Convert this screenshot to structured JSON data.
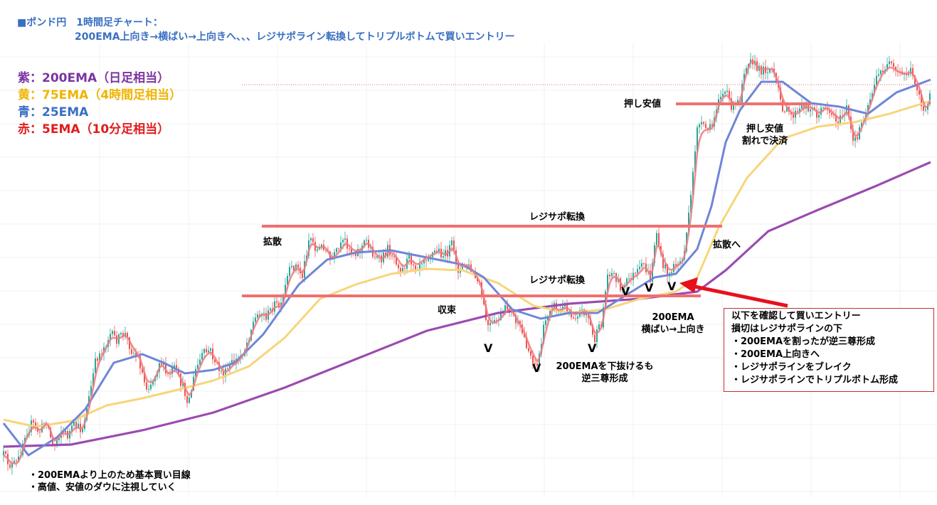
{
  "title": {
    "line1": "■ポンド円　1時間足チャート：",
    "line2": "200EMA上向き→横ばい→上向きへ、、、レジサポライン転換してトリプルボトムで買いエントリー"
  },
  "legend": [
    {
      "text": "紫：200EMA（日足相当）",
      "color": "#7a35a0"
    },
    {
      "text": "黄：75EMA（4時間足相当）",
      "color": "#f0b400"
    },
    {
      "text": "青：25EMA",
      "color": "#3a6fc2"
    },
    {
      "text": "赤：5EMA（10分足相当）",
      "color": "#e21b1b"
    }
  ],
  "annotations": {
    "oshi_yasune": "押し安値",
    "oshi_yasune_break_1": "押し安値",
    "oshi_yasune_break_2": "割れで決済",
    "resisapo_upper": "レジサポ転換",
    "resisapo_lower": "レジサポ転換",
    "kakusan": "拡散",
    "kakusan_he": "拡散へ",
    "shuusoku": "収束",
    "ema_flat_1": "200EMA",
    "ema_flat_2": "横ばい→上向き",
    "below_ema_1": "200EMAを下抜けるも",
    "below_ema_2": "逆三尊形成",
    "bottom_note_1": "・200EMAより上のため基本買い目線",
    "bottom_note_2": "・高値、安値のダウに注視していく",
    "check_mark": "V"
  },
  "entry_box": {
    "lines": [
      "以下を確認して買いエントリー",
      "損切はレジサポラインの下",
      "・200EMAを割ったが逆三尊形成",
      "・200EMA上向きへ",
      "・レジサポラインをブレイク",
      "・レジサポラインでトリプルボトム形成"
    ]
  },
  "colors": {
    "up_candle": "#26a69a",
    "down_candle": "#ef5350",
    "ema200": "#9b4bb0",
    "ema75": "#f7d57a",
    "ema25": "#6f86d8",
    "ema5": "#ef7a80",
    "sr_line": "#f07070",
    "arrow": "#e8101b"
  },
  "chart_data": {
    "type": "candlestick",
    "instrument": "ポンド円",
    "timeframe": "1時間足",
    "price_path": [
      [
        5,
        640
      ],
      [
        15,
        655
      ],
      [
        25,
        650
      ],
      [
        35,
        610
      ],
      [
        45,
        595
      ],
      [
        55,
        608
      ],
      [
        65,
        590
      ],
      [
        75,
        630
      ],
      [
        85,
        605
      ],
      [
        95,
        612
      ],
      [
        105,
        598
      ],
      [
        115,
        605
      ],
      [
        125,
        560
      ],
      [
        135,
        505
      ],
      [
        145,
        490
      ],
      [
        155,
        470
      ],
      [
        165,
        478
      ],
      [
        175,
        468
      ],
      [
        185,
        492
      ],
      [
        195,
        505
      ],
      [
        205,
        545
      ],
      [
        215,
        535
      ],
      [
        225,
        505
      ],
      [
        235,
        530
      ],
      [
        245,
        518
      ],
      [
        255,
        540
      ],
      [
        265,
        565
      ],
      [
        275,
        520
      ],
      [
        285,
        498
      ],
      [
        295,
        492
      ],
      [
        305,
        515
      ],
      [
        315,
        528
      ],
      [
        325,
        512
      ],
      [
        335,
        505
      ],
      [
        345,
        488
      ],
      [
        355,
        455
      ],
      [
        365,
        438
      ],
      [
        375,
        445
      ],
      [
        385,
        428
      ],
      [
        395,
        432
      ],
      [
        405,
        385
      ],
      [
        415,
        372
      ],
      [
        425,
        388
      ],
      [
        435,
        330
      ],
      [
        445,
        352
      ],
      [
        455,
        345
      ],
      [
        465,
        368
      ],
      [
        475,
        352
      ],
      [
        485,
        338
      ],
      [
        495,
        355
      ],
      [
        505,
        352
      ],
      [
        515,
        338
      ],
      [
        525,
        358
      ],
      [
        535,
        368
      ],
      [
        545,
        350
      ],
      [
        555,
        362
      ],
      [
        565,
        380
      ],
      [
        575,
        362
      ],
      [
        585,
        375
      ],
      [
        595,
        362
      ],
      [
        605,
        358
      ],
      [
        615,
        352
      ],
      [
        625,
        360
      ],
      [
        635,
        345
      ],
      [
        645,
        382
      ],
      [
        655,
        370
      ],
      [
        665,
        385
      ],
      [
        675,
        405
      ],
      [
        685,
        460
      ],
      [
        695,
        455
      ],
      [
        705,
        442
      ],
      [
        715,
        430
      ],
      [
        725,
        452
      ],
      [
        735,
        470
      ],
      [
        745,
        498
      ],
      [
        755,
        515
      ],
      [
        765,
        458
      ],
      [
        775,
        425
      ],
      [
        785,
        438
      ],
      [
        795,
        430
      ],
      [
        805,
        445
      ],
      [
        815,
        438
      ],
      [
        825,
        438
      ],
      [
        835,
        480
      ],
      [
        845,
        455
      ],
      [
        855,
        380
      ],
      [
        865,
        388
      ],
      [
        875,
        408
      ],
      [
        885,
        390
      ],
      [
        895,
        385
      ],
      [
        905,
        372
      ],
      [
        915,
        395
      ],
      [
        922,
        320
      ],
      [
        930,
        370
      ],
      [
        940,
        385
      ],
      [
        950,
        372
      ],
      [
        960,
        365
      ],
      [
        970,
        290
      ],
      [
        980,
        175
      ],
      [
        990,
        180
      ],
      [
        1000,
        182
      ],
      [
        1010,
        135
      ],
      [
        1020,
        130
      ],
      [
        1030,
        152
      ],
      [
        1040,
        140
      ],
      [
        1045,
        100
      ],
      [
        1055,
        78
      ],
      [
        1065,
        100
      ],
      [
        1075,
        97
      ],
      [
        1085,
        97
      ],
      [
        1090,
        115
      ],
      [
        1100,
        150
      ],
      [
        1110,
        162
      ],
      [
        1120,
        160
      ],
      [
        1130,
        148
      ],
      [
        1140,
        152
      ],
      [
        1150,
        162
      ],
      [
        1160,
        148
      ],
      [
        1170,
        162
      ],
      [
        1180,
        170
      ],
      [
        1190,
        152
      ],
      [
        1200,
        205
      ],
      [
        1210,
        175
      ],
      [
        1220,
        148
      ],
      [
        1230,
        115
      ],
      [
        1240,
        98
      ],
      [
        1250,
        92
      ],
      [
        1260,
        102
      ],
      [
        1270,
        105
      ],
      [
        1280,
        100
      ],
      [
        1290,
        125
      ],
      [
        1300,
        165
      ],
      [
        1308,
        128
      ]
    ],
    "ema200_path": [
      [
        5,
        628
      ],
      [
        100,
        625
      ],
      [
        200,
        605
      ],
      [
        300,
        580
      ],
      [
        400,
        545
      ],
      [
        500,
        505
      ],
      [
        600,
        465
      ],
      [
        700,
        440
      ],
      [
        800,
        427
      ],
      [
        900,
        420
      ],
      [
        980,
        410
      ],
      [
        1020,
        380
      ],
      [
        1080,
        325
      ],
      [
        1150,
        295
      ],
      [
        1230,
        262
      ],
      [
        1308,
        228
      ]
    ],
    "ema75_path": [
      [
        5,
        590
      ],
      [
        50,
        600
      ],
      [
        100,
        592
      ],
      [
        150,
        570
      ],
      [
        200,
        560
      ],
      [
        250,
        548
      ],
      [
        300,
        535
      ],
      [
        350,
        515
      ],
      [
        400,
        475
      ],
      [
        450,
        420
      ],
      [
        500,
        400
      ],
      [
        550,
        385
      ],
      [
        600,
        378
      ],
      [
        650,
        380
      ],
      [
        700,
        398
      ],
      [
        750,
        430
      ],
      [
        800,
        440
      ],
      [
        850,
        435
      ],
      [
        900,
        420
      ],
      [
        950,
        410
      ],
      [
        980,
        390
      ],
      [
        1010,
        320
      ],
      [
        1050,
        250
      ],
      [
        1100,
        195
      ],
      [
        1150,
        178
      ],
      [
        1200,
        172
      ],
      [
        1250,
        160
      ],
      [
        1308,
        142
      ]
    ],
    "ema25_path": [
      [
        5,
        595
      ],
      [
        40,
        640
      ],
      [
        80,
        615
      ],
      [
        120,
        575
      ],
      [
        160,
        510
      ],
      [
        200,
        498
      ],
      [
        230,
        510
      ],
      [
        260,
        525
      ],
      [
        300,
        520
      ],
      [
        330,
        510
      ],
      [
        370,
        470
      ],
      [
        420,
        400
      ],
      [
        460,
        365
      ],
      [
        500,
        355
      ],
      [
        550,
        352
      ],
      [
        600,
        362
      ],
      [
        650,
        372
      ],
      [
        680,
        390
      ],
      [
        720,
        435
      ],
      [
        760,
        448
      ],
      [
        800,
        440
      ],
      [
        840,
        440
      ],
      [
        880,
        415
      ],
      [
        920,
        390
      ],
      [
        950,
        385
      ],
      [
        980,
        350
      ],
      [
        1000,
        290
      ],
      [
        1020,
        200
      ],
      [
        1040,
        155
      ],
      [
        1070,
        115
      ],
      [
        1100,
        115
      ],
      [
        1140,
        145
      ],
      [
        1180,
        150
      ],
      [
        1220,
        160
      ],
      [
        1260,
        130
      ],
      [
        1308,
        112
      ]
    ],
    "resistance_upper": {
      "y_level_px_hint": null,
      "label": "レジサポ転換"
    },
    "resistance_lower": {
      "label": "レジサポ転換"
    },
    "push_low": {
      "label": "押し安値"
    }
  }
}
